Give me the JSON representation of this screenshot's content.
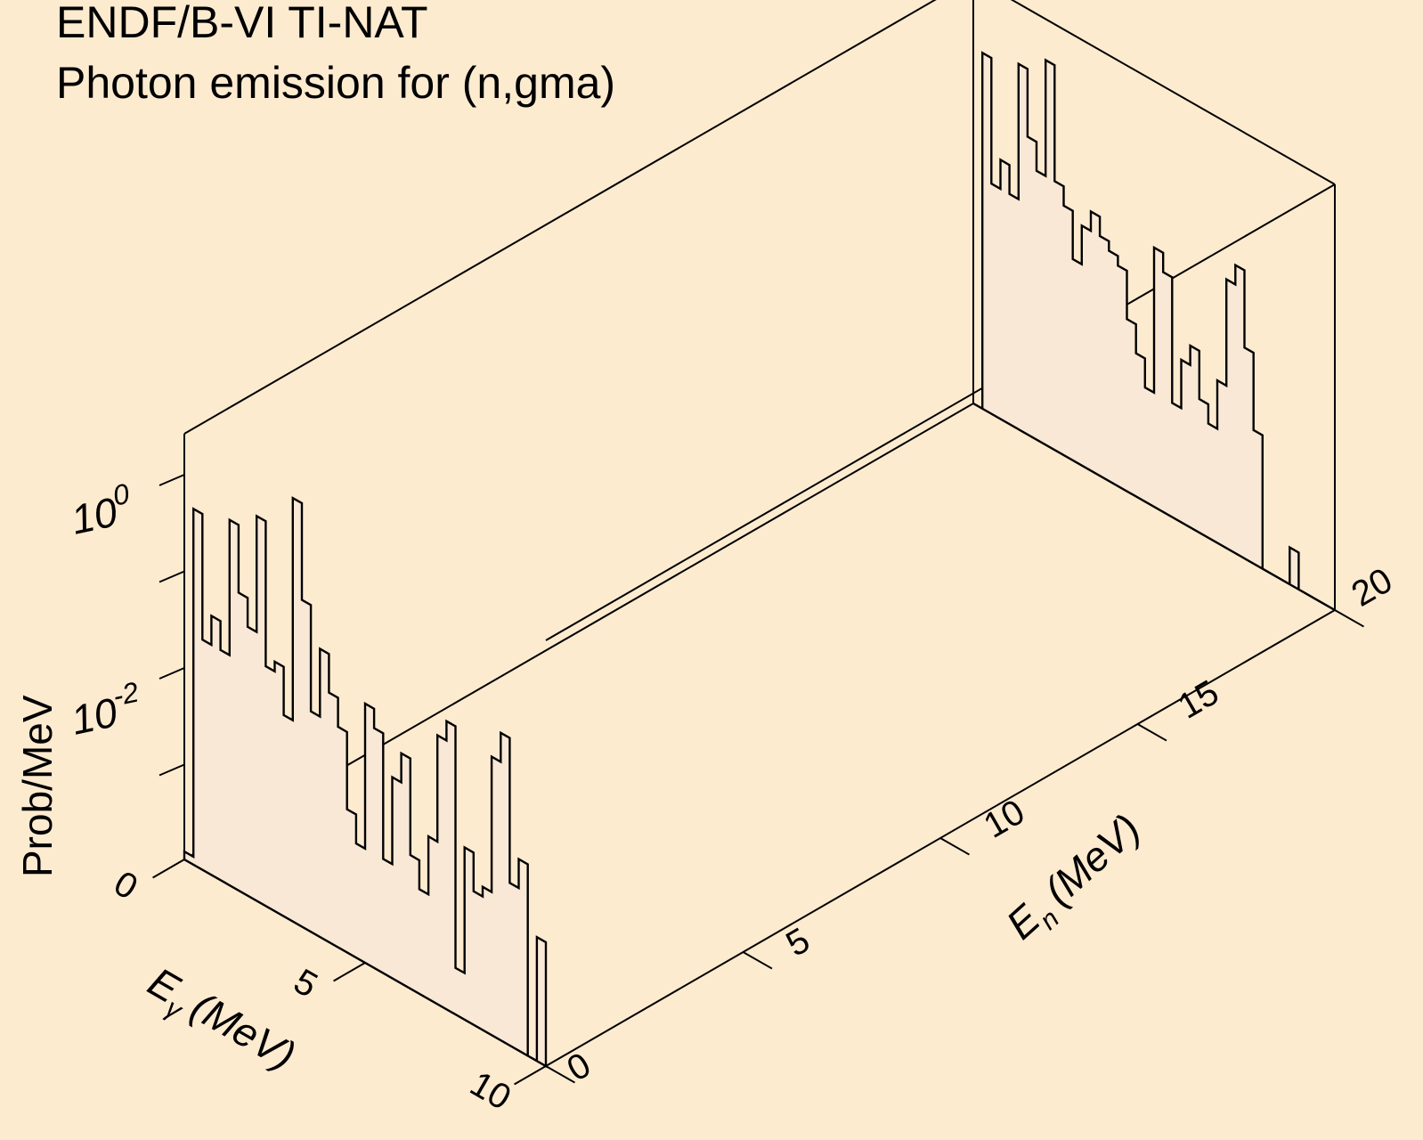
{
  "chart_data": {
    "type": "3d-stacked-histogram",
    "title": [
      "ENDF/B-VI TI-NAT",
      "Photon emission for (n,gma)"
    ],
    "axes": {
      "x": {
        "label": "E",
        "subscript": "γ",
        "unit": "(MeV)",
        "range": [
          0,
          10
        ],
        "ticks": [
          "0",
          "5",
          "10"
        ]
      },
      "y": {
        "label": "E",
        "subscript": "n",
        "unit": "(MeV)",
        "range": [
          0,
          20
        ],
        "ticks": [
          "0",
          "5",
          "10",
          "15",
          "20"
        ]
      },
      "z": {
        "label": "Prob/MeV",
        "scale": "log",
        "ticks": [
          {
            "base": "10",
            "exp": "0"
          },
          {
            "base": "10",
            "exp": "-2"
          }
        ]
      }
    },
    "series": [
      {
        "En": 0,
        "bins_Egamma": [
          0,
          0.25,
          0.5,
          0.75,
          1,
          1.25,
          1.5,
          1.75,
          2,
          2.25,
          2.5,
          2.75,
          3,
          3.25,
          3.5,
          3.75,
          4,
          4.25,
          4.5,
          4.75,
          5,
          5.25,
          5.5,
          5.75,
          6,
          6.25,
          6.5,
          6.75,
          7,
          7.25,
          7.5,
          7.75,
          8,
          8.25,
          8.5,
          8.75,
          9,
          9.25,
          9.5,
          9.75,
          10
        ],
        "log10_prob": [
          -3.9,
          -0.3,
          -1.6,
          -1.3,
          -1.6,
          -0.2,
          -0.9,
          -1.2,
          0.0,
          -1.5,
          -1.4,
          -1.9,
          0.4,
          -0.6,
          -1.7,
          -1.0,
          -1.4,
          -1.7,
          -2.5,
          -2.8,
          -1.3,
          -1.5,
          -2.8,
          -1.9,
          -1.6,
          -2.6,
          -2.9,
          -2.3,
          -1.2,
          -1.0,
          -3.5,
          -2.2,
          -2.6,
          -2.5,
          -1.1,
          -0.8,
          -2.3,
          -2.0,
          -4.0,
          -2.7,
          -5.4
        ]
      },
      {
        "En": 20,
        "bins_Egamma": [
          0,
          0.25,
          0.5,
          0.75,
          1,
          1.25,
          1.5,
          1.75,
          2,
          2.25,
          2.5,
          2.75,
          3,
          3.25,
          3.5,
          3.75,
          4,
          4.25,
          4.5,
          4.75,
          5,
          5.25,
          5.5,
          5.75,
          6,
          6.25,
          6.5,
          6.75,
          7,
          7.25,
          7.5,
          7.75,
          8,
          8.25,
          8.5,
          8.75,
          9,
          9.25,
          9.5,
          9.75,
          10
        ],
        "log10_prob": [
          -4.5,
          -0.3,
          -1.6,
          -1.3,
          -1.6,
          -0.2,
          -0.9,
          -1.2,
          0.0,
          -1.2,
          -1.4,
          -1.9,
          -1.5,
          -1.3,
          -1.5,
          -1.6,
          -1.7,
          -2.2,
          -2.5,
          -2.8,
          -1.3,
          -1.5,
          -2.8,
          -2.3,
          -2.1,
          -2.6,
          -2.8,
          -2.3,
          -1.2,
          -1.0,
          -1.8,
          -2.6,
          -4.5,
          -5.1,
          -4.9,
          -3.6,
          -5.2,
          -5.4,
          -5.4,
          -5.4,
          -5.4
        ]
      }
    ]
  }
}
